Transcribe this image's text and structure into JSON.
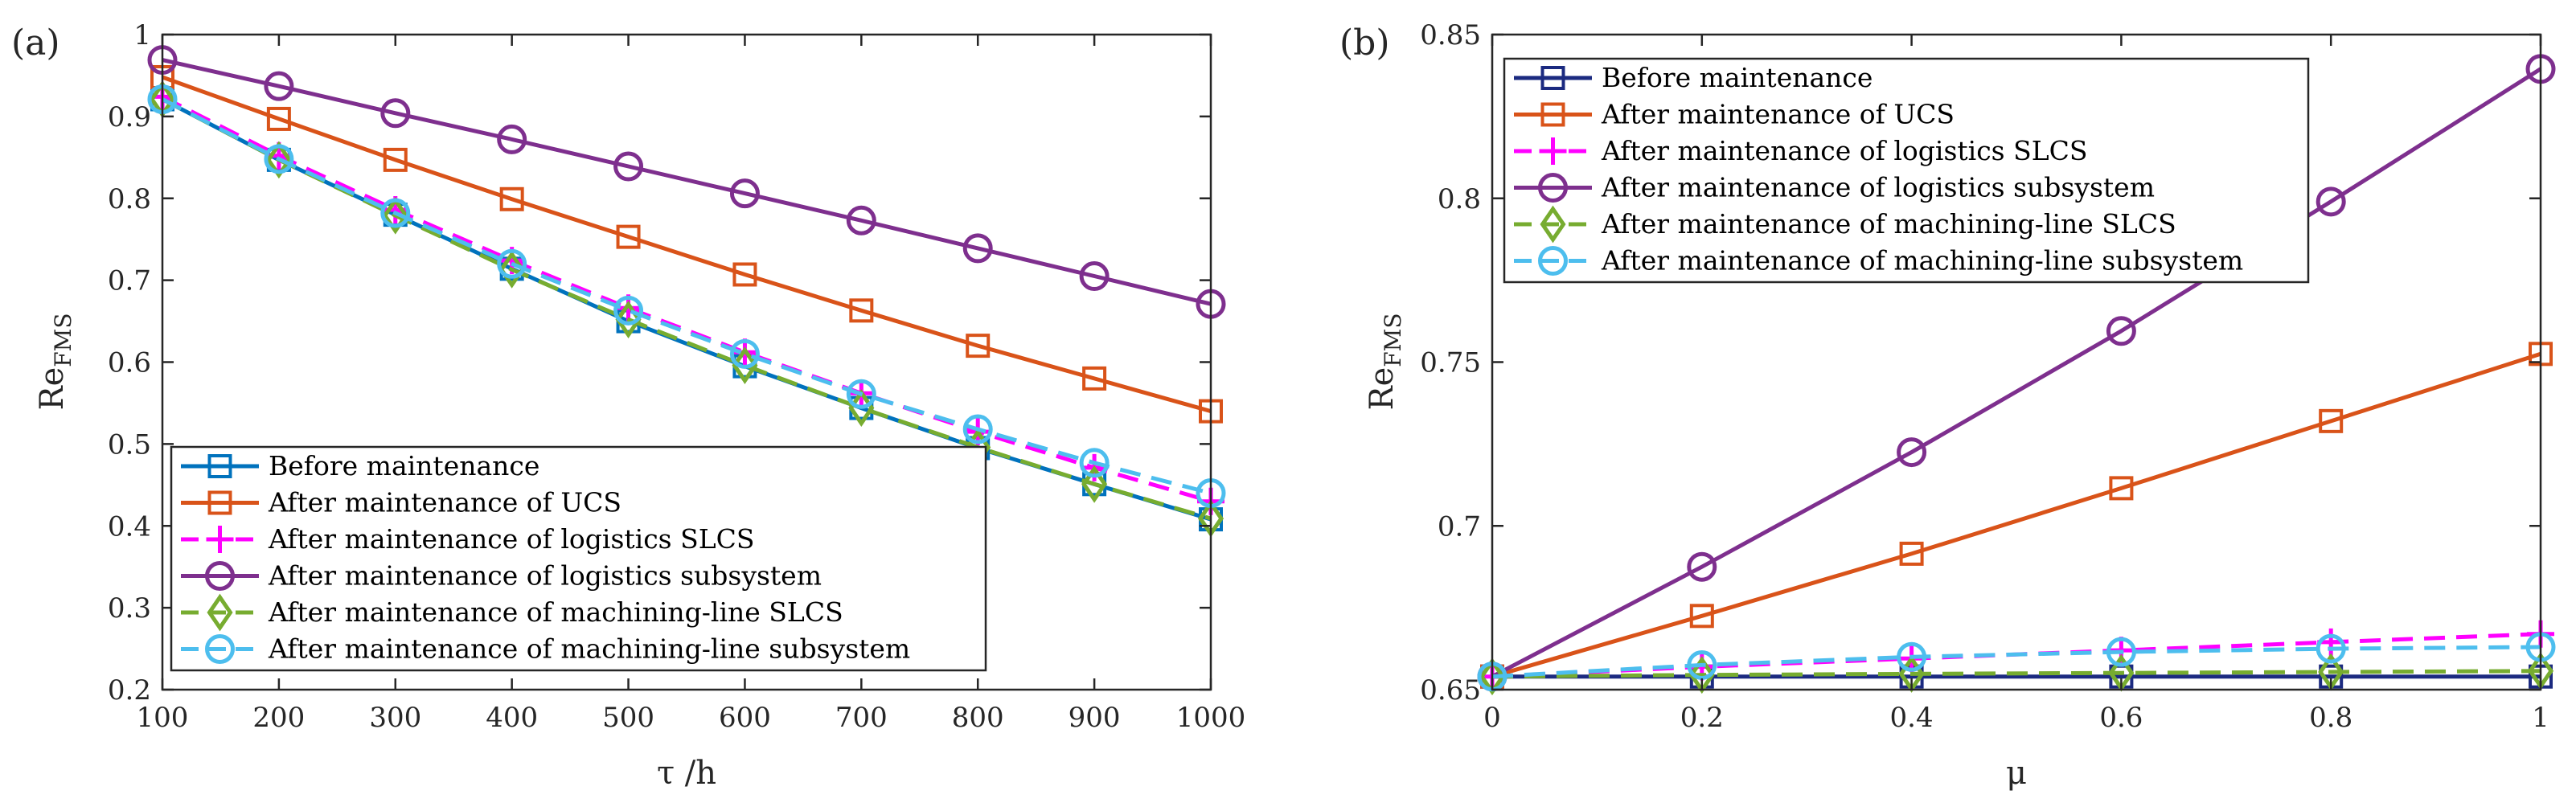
{
  "chart_data": [
    {
      "panel_label": "(a)",
      "type": "line",
      "xlabel": "τ /h",
      "ylabel_main": "Re",
      "ylabel_sub": "FMS",
      "xlim": [
        100,
        1000
      ],
      "ylim": [
        0.2,
        1.0
      ],
      "x": [
        100,
        200,
        300,
        400,
        500,
        600,
        700,
        800,
        900,
        1000
      ],
      "xticks": [
        100,
        200,
        300,
        400,
        500,
        600,
        700,
        800,
        900,
        1000
      ],
      "xtick_labels": [
        "100",
        "200",
        "300",
        "400",
        "500",
        "600",
        "700",
        "800",
        "900",
        "1000"
      ],
      "yticks": [
        0.2,
        0.3,
        0.4,
        0.5,
        0.6,
        0.7,
        0.8,
        0.9,
        1.0
      ],
      "ytick_labels": [
        "0.2",
        "0.3",
        "0.4",
        "0.5",
        "0.6",
        "0.7",
        "0.8",
        "0.9",
        "1"
      ],
      "legend_position": "bottom-left",
      "series": [
        {
          "name": "Before maintenance",
          "color": "#0072BD",
          "marker": "square",
          "dash": "solid",
          "values": [
            0.921,
            0.847,
            0.78,
            0.714,
            0.65,
            0.595,
            0.544,
            0.495,
            0.451,
            0.408
          ]
        },
        {
          "name": "After maintenance of UCS",
          "color": "#D95319",
          "marker": "square",
          "dash": "solid",
          "values": [
            0.948,
            0.897,
            0.847,
            0.799,
            0.753,
            0.707,
            0.663,
            0.62,
            0.58,
            0.54
          ]
        },
        {
          "name": "After maintenance of logistics SLCS",
          "color": "#FF00FF",
          "marker": "plus",
          "dash": "dashed",
          "values": [
            0.924,
            0.852,
            0.786,
            0.724,
            0.666,
            0.612,
            0.562,
            0.515,
            0.471,
            0.43
          ]
        },
        {
          "name": "After maintenance of logistics subsystem",
          "color": "#7E2F8E",
          "marker": "circle",
          "dash": "solid",
          "values": [
            0.969,
            0.937,
            0.904,
            0.872,
            0.839,
            0.806,
            0.773,
            0.739,
            0.705,
            0.671
          ]
        },
        {
          "name": "After maintenance of machining-line SLCS",
          "color": "#77AC30",
          "marker": "diamond",
          "dash": "dashed",
          "values": [
            0.921,
            0.847,
            0.779,
            0.713,
            0.652,
            0.596,
            0.544,
            0.496,
            0.451,
            0.409
          ]
        },
        {
          "name": "After maintenance of machining-line subsystem",
          "color": "#4DBEEE",
          "marker": "circle",
          "dash": "dashed",
          "values": [
            0.921,
            0.848,
            0.782,
            0.72,
            0.663,
            0.61,
            0.561,
            0.518,
            0.477,
            0.44
          ]
        }
      ]
    },
    {
      "panel_label": "(b)",
      "type": "line",
      "xlabel": "μ",
      "ylabel_main": "Re",
      "ylabel_sub": "FMS",
      "xlim": [
        0,
        1
      ],
      "ylim": [
        0.65,
        0.85
      ],
      "x": [
        0,
        0.2,
        0.4,
        0.6,
        0.8,
        1
      ],
      "xticks": [
        0,
        0.2,
        0.4,
        0.6,
        0.8,
        1
      ],
      "xtick_labels": [
        "0",
        "0.2",
        "0.4",
        "0.6",
        "0.8",
        "1"
      ],
      "yticks": [
        0.65,
        0.7,
        0.75,
        0.8,
        0.85
      ],
      "ytick_labels": [
        "0.65",
        "0.7",
        "0.75",
        "0.8",
        "0.85"
      ],
      "legend_position": "top-left",
      "series": [
        {
          "name": "Before maintenance",
          "color": "#1B2A80",
          "marker": "square",
          "dash": "solid",
          "values": [
            0.654,
            0.654,
            0.654,
            0.654,
            0.654,
            0.654
          ]
        },
        {
          "name": "After maintenance of UCS",
          "color": "#D95319",
          "marker": "square",
          "dash": "solid",
          "values": [
            0.654,
            0.6725,
            0.6915,
            0.7115,
            0.732,
            0.7525
          ]
        },
        {
          "name": "After maintenance of logistics SLCS",
          "color": "#FF00FF",
          "marker": "plus",
          "dash": "dashed",
          "values": [
            0.654,
            0.657,
            0.6595,
            0.662,
            0.6645,
            0.667
          ]
        },
        {
          "name": "After maintenance of logistics subsystem",
          "color": "#7E2F8E",
          "marker": "circle",
          "dash": "solid",
          "values": [
            0.654,
            0.6875,
            0.7225,
            0.7595,
            0.799,
            0.8395
          ]
        },
        {
          "name": "After maintenance of machining-line SLCS",
          "color": "#77AC30",
          "marker": "diamond",
          "dash": "dashed",
          "values": [
            0.654,
            0.6545,
            0.6548,
            0.6551,
            0.6554,
            0.6557
          ]
        },
        {
          "name": "After maintenance of machining-line subsystem",
          "color": "#4DBEEE",
          "marker": "circle",
          "dash": "dashed",
          "values": [
            0.654,
            0.6575,
            0.66,
            0.6615,
            0.6625,
            0.663
          ]
        }
      ]
    }
  ]
}
